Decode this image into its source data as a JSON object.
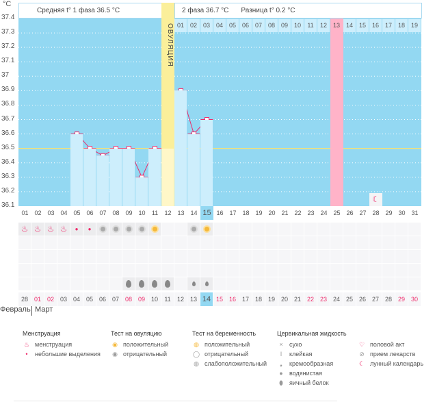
{
  "header": {
    "unit": "°C",
    "phase1": "Средняя t° 1 фаза 36.5 °C",
    "phase2": "2 фаза 36.7 °C",
    "diff": "Разница t° 0.2 °C",
    "ovulation": "ОВУЛЯЦИЯ"
  },
  "colors": {
    "plot_bg": "#93d8f2",
    "bar": "#cdeefc",
    "line": "#ee2a6a",
    "coverline": "#f2e07a",
    "ovulation": "#fbef9a",
    "pink_day": "#ffb3c8",
    "today": "#93d8f2",
    "weekend": "#ee2a6a"
  },
  "chart_data": {
    "type": "line",
    "ylabel": "°C",
    "ylim": [
      36.1,
      37.4
    ],
    "yticks": [
      "37.4",
      "37.3",
      "37.2",
      "37.1",
      "37",
      "36.9",
      "36.8",
      "36.7",
      "36.6",
      "36.5",
      "36.4",
      "36.3",
      "36.2",
      "36.1"
    ],
    "cycle_days": [
      "01",
      "02",
      "03",
      "04",
      "05",
      "06",
      "07",
      "08",
      "09",
      "10",
      "11",
      "12",
      "13",
      "14",
      "15",
      "16",
      "17",
      "18",
      "19",
      "20",
      "21",
      "22",
      "23",
      "24",
      "25",
      "26",
      "27",
      "28",
      "29",
      "30",
      "31"
    ],
    "temps": [
      null,
      null,
      null,
      null,
      36.6,
      36.5,
      36.45,
      36.5,
      36.5,
      36.3,
      36.5,
      36.5,
      36.9,
      36.6,
      36.7,
      null,
      null,
      null,
      null,
      null,
      null,
      null,
      null,
      null,
      null,
      null,
      null,
      null,
      null,
      null,
      null
    ],
    "coverline": 36.5,
    "ovulation_day": 12,
    "highlight_day": 25,
    "today_day": 15,
    "moon_day": 28,
    "phase2_days": [
      "01",
      "02",
      "03",
      "04",
      "05",
      "06",
      "07",
      "08",
      "09",
      "10",
      "11",
      "12",
      "13",
      "14",
      "15",
      "16",
      "17",
      "18",
      "19"
    ],
    "dates": [
      "28",
      "01",
      "02",
      "03",
      "04",
      "05",
      "06",
      "07",
      "08",
      "09",
      "10",
      "11",
      "12",
      "13",
      "14",
      "15",
      "16",
      "17",
      "18",
      "19",
      "20",
      "21",
      "22",
      "23",
      "24",
      "25",
      "26",
      "27",
      "28",
      "29",
      "30"
    ],
    "weekend_dates": [
      2,
      3,
      9,
      10,
      16,
      17,
      23,
      24,
      30,
      31
    ],
    "months": [
      "Февраль",
      "Март"
    ],
    "rows": {
      "menstruation": {
        "1": "big",
        "2": "big",
        "3": "big",
        "4": "big",
        "5": "small",
        "6": "small"
      },
      "ovulation_test": {
        "7": "neg",
        "8": "neg",
        "9": "neg",
        "10": "neg",
        "11": "pos",
        "14": "neg",
        "15": "pos"
      },
      "fluid": {
        "9": "egg",
        "10": "egg",
        "11": "egg",
        "12": "egg",
        "14": "water",
        "15": "water"
      }
    }
  },
  "legend": [
    {
      "title": "Менструация",
      "items": [
        {
          "icon": "menstruation-icon",
          "label": "менструация"
        },
        {
          "icon": "spotting-icon",
          "label": "небольшие выделения"
        }
      ]
    },
    {
      "title": "Тест на овуляцию",
      "items": [
        {
          "icon": "positive-icon",
          "label": "положительный"
        },
        {
          "icon": "negative-icon",
          "label": "отрицательный"
        }
      ]
    },
    {
      "title": "Тест на беременность",
      "items": [
        {
          "icon": "preg-positive-icon",
          "label": "положительный"
        },
        {
          "icon": "preg-negative-icon",
          "label": "отрицательный"
        },
        {
          "icon": "preg-weak-icon",
          "label": "слабоположительный"
        }
      ]
    },
    {
      "title": "Цервикальная жидкость",
      "items": [
        {
          "icon": "dry-icon",
          "label": "сухо"
        },
        {
          "icon": "sticky-icon",
          "label": "клейкая"
        },
        {
          "icon": "creamy-icon",
          "label": "кремообразная"
        },
        {
          "icon": "watery-icon",
          "label": "водянистая"
        },
        {
          "icon": "egg-white-icon",
          "label": "яичный белок"
        }
      ]
    },
    {
      "title": "",
      "items": [
        {
          "icon": "heart-icon",
          "label": "половой акт"
        },
        {
          "icon": "pill-icon",
          "label": "прием лекарств"
        },
        {
          "icon": "moon-icon",
          "label": "лунный календарь"
        }
      ]
    }
  ]
}
